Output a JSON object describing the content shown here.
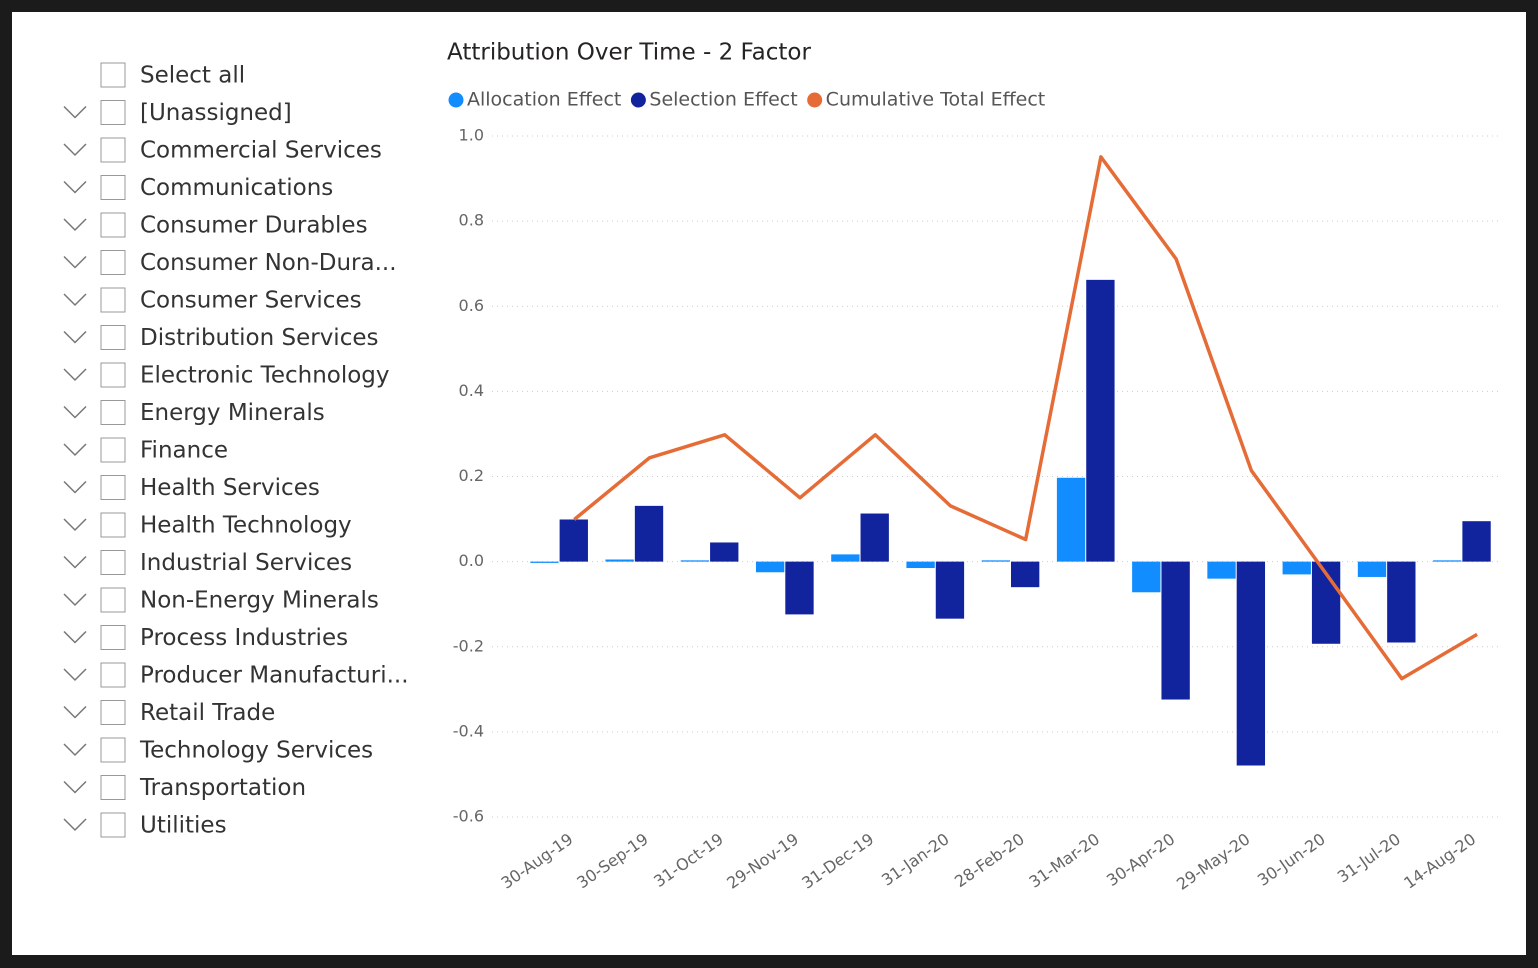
{
  "slicer": {
    "items": [
      "Select all",
      "[Unassigned]",
      "Commercial Services",
      "Communications",
      "Consumer Durables",
      "Consumer Non-Dura...",
      "Consumer Services",
      "Distribution Services",
      "Electronic Technology",
      "Energy Minerals",
      "Finance",
      "Health Services",
      "Health Technology",
      "Industrial Services",
      "Non-Energy Minerals",
      "Process Industries",
      "Producer Manufacturi...",
      "Retail Trade",
      "Technology Services",
      "Transportation",
      "Utilities"
    ]
  },
  "chart_data": {
    "type": "bar_line",
    "title": "Attribution Over Time - 2 Factor",
    "categories": [
      "30-Aug-19",
      "30-Sep-19",
      "31-Oct-19",
      "29-Nov-19",
      "31-Dec-19",
      "31-Jan-20",
      "28-Feb-20",
      "31-Mar-20",
      "30-Apr-20",
      "29-May-20",
      "30-Jun-20",
      "31-Jul-20",
      "14-Aug-20"
    ],
    "series": [
      {
        "name": "Allocation Effect",
        "color": "#118DFF",
        "kind": "bar",
        "values": [
          -0.003,
          0.005,
          0.003,
          -0.025,
          0.017,
          -0.015,
          0.003,
          0.197,
          -0.072,
          -0.04,
          -0.03,
          -0.036,
          0.003
        ]
      },
      {
        "name": "Selection Effect",
        "color": "#12239E",
        "kind": "bar",
        "values": [
          0.099,
          0.131,
          0.045,
          -0.124,
          0.113,
          -0.134,
          -0.06,
          0.662,
          -0.324,
          -0.479,
          -0.193,
          -0.19,
          0.095
        ]
      },
      {
        "name": "Cumulative Total Effect",
        "color": "#E66C37",
        "kind": "line",
        "values": [
          0.099,
          0.244,
          0.298,
          0.15,
          0.298,
          0.131,
          0.052,
          0.951,
          0.711,
          0.214,
          -0.03,
          -0.275,
          -0.171
        ]
      }
    ],
    "ylim": [
      -0.6,
      1.0
    ],
    "yticks": [
      {
        "value": -0.6,
        "label": "-0.6"
      },
      -0.4,
      -0.2,
      {
        "value": 0,
        "label": "0.0"
      },
      0.2,
      0.4,
      0.6,
      0.8,
      {
        "value": 1,
        "label": "1.0"
      }
    ],
    "grid": true
  }
}
